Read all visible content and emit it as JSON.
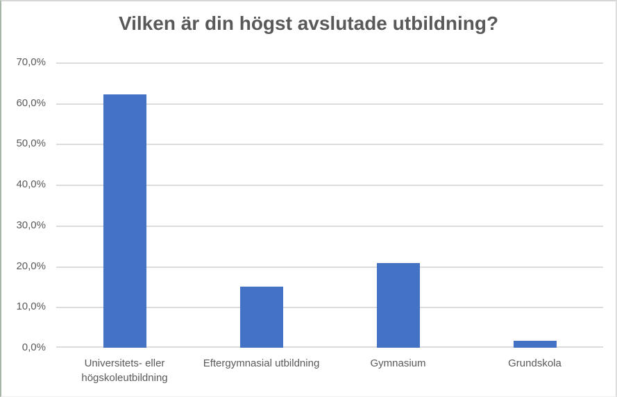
{
  "chart_data": {
    "type": "bar",
    "title": "Vilken är din högst avslutade utbildning?",
    "categories": [
      "Universitets- eller högskoleutbildning",
      "Eftergymnasial utbildning",
      "Gymnasium",
      "Grundskola"
    ],
    "values": [
      62.1,
      15.0,
      20.7,
      1.7
    ],
    "value_unit": "%",
    "xlabel": "",
    "ylabel": "",
    "ylim": [
      0,
      70
    ],
    "yticks": [
      {
        "value": 0,
        "label": "0,0%"
      },
      {
        "value": 10,
        "label": "10,0%"
      },
      {
        "value": 20,
        "label": "20,0%"
      },
      {
        "value": 30,
        "label": "30,0%"
      },
      {
        "value": 40,
        "label": "40,0%"
      },
      {
        "value": 50,
        "label": "50,0%"
      },
      {
        "value": 60,
        "label": "60,0%"
      },
      {
        "value": 70,
        "label": "70,0%"
      }
    ],
    "grid": true,
    "legend": false,
    "colors": {
      "bar": "#4472C4",
      "gridline": "#DCDCDC",
      "text": "#595959",
      "title": "#595959",
      "background": "#FFFFFF"
    }
  }
}
